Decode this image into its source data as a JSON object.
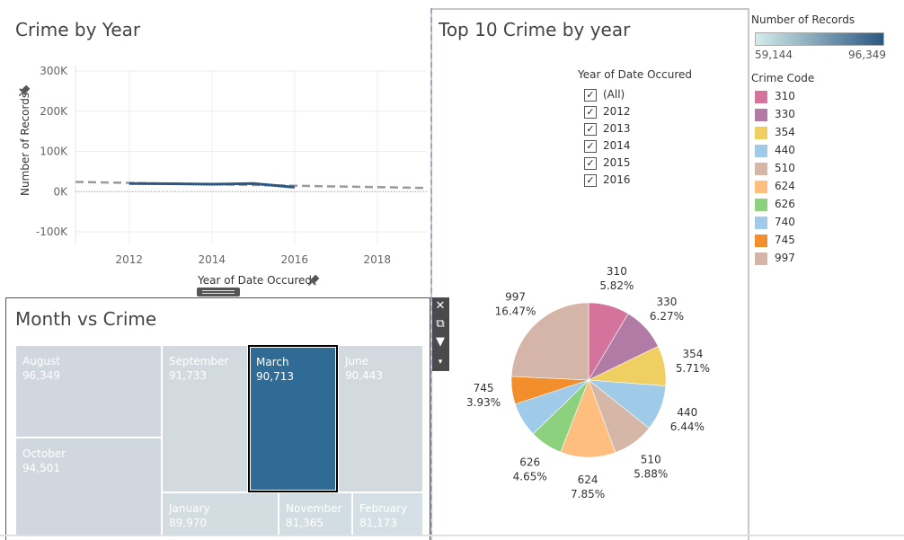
{
  "line_panel": {
    "title": "Crime by Year",
    "ylabel": "Number of Records",
    "xlabel": "Year of Date Occured",
    "y_ticks": [
      "300K",
      "200K",
      "100K",
      "0K",
      "-100K"
    ],
    "x_ticks": [
      "2012",
      "2014",
      "2016",
      "2018"
    ]
  },
  "chart_data": [
    {
      "type": "line",
      "title": "Crime by Year",
      "xlabel": "Year of Date Occured",
      "ylabel": "Number of Records",
      "ylim": [
        -100000,
        300000
      ],
      "xlim": [
        2010.7,
        2019.2
      ],
      "series": [
        {
          "values": [
            {
              "x": 2012,
              "y": 20000
            },
            {
              "x": 2013,
              "y": 19500
            },
            {
              "x": 2014,
              "y": 18500
            },
            {
              "x": 2015,
              "y": 20000
            },
            {
              "x": 2016,
              "y": 11000
            }
          ]
        }
      ],
      "trend_line": {
        "x": [
          2010.7,
          2019.2
        ],
        "y": [
          24000,
          9000
        ]
      },
      "grid": true
    },
    {
      "type": "pie",
      "title": "Top 10 Crime by year",
      "slices": [
        {
          "label": "310",
          "percent": "5.82%",
          "value": 5.82,
          "color": "#D4739B"
        },
        {
          "label": "330",
          "percent": "6.27%",
          "value": 6.27,
          "color": "#B27BA5"
        },
        {
          "label": "354",
          "percent": "5.71%",
          "value": 5.71,
          "color": "#F0CF62"
        },
        {
          "label": "440",
          "percent": "6.44%",
          "value": 6.44,
          "color": "#A0CBE8"
        },
        {
          "label": "510",
          "percent": "5.88%",
          "value": 5.88,
          "color": "#D6B6A6"
        },
        {
          "label": "624",
          "percent": "7.85%",
          "value": 7.85,
          "color": "#FFBE7D"
        },
        {
          "label": "626",
          "percent": "4.65%",
          "value": 4.65,
          "color": "#8CD17D"
        },
        {
          "label": "740",
          "percent": "",
          "value": 4.9,
          "color": "#A0CBE8"
        },
        {
          "label": "745",
          "percent": "3.93%",
          "value": 3.93,
          "color": "#F28E2B"
        },
        {
          "label": "997",
          "percent": "16.47%",
          "value": 16.47,
          "color": "#D4B5A8"
        }
      ]
    },
    {
      "type": "treemap",
      "title": "Month vs Crime",
      "cells": [
        {
          "label": "August",
          "value": "96,349",
          "color": "#d1d7df"
        },
        {
          "label": "October",
          "value": "94,501",
          "color": "#d1d7df"
        },
        {
          "label": "September",
          "value": "91,733",
          "color": "#d2dae0"
        },
        {
          "label": "March",
          "value": "90,713",
          "color": "#2f6b94"
        },
        {
          "label": "June",
          "value": "90,443",
          "color": "#d2dae0"
        },
        {
          "label": "January",
          "value": "89,970",
          "color": "#d2dce1"
        },
        {
          "label": "November",
          "value": "81,365",
          "color": "#d2dde3"
        },
        {
          "label": "February",
          "value": "81,173",
          "color": "#d4e0e5"
        }
      ]
    }
  ],
  "pie_panel": {
    "title": "Top 10 Crime by year"
  },
  "treemap_panel": {
    "title": "Month vs Crime"
  },
  "filter": {
    "title": "Year of Date Occured",
    "options": [
      {
        "label": "(All)",
        "checked": true
      },
      {
        "label": "2012",
        "checked": true
      },
      {
        "label": "2013",
        "checked": true
      },
      {
        "label": "2014",
        "checked": true
      },
      {
        "label": "2015",
        "checked": true
      },
      {
        "label": "2016",
        "checked": true
      }
    ]
  },
  "color_legend": {
    "title": "Number of Records",
    "min": "59,144",
    "max": "96,349",
    "gradient_start": "#d4ecea",
    "gradient_end": "#2a5783"
  },
  "code_legend": {
    "title": "Crime Code",
    "items": [
      {
        "label": "310",
        "color": "#D4739B"
      },
      {
        "label": "330",
        "color": "#B27BA5"
      },
      {
        "label": "354",
        "color": "#F0CF62"
      },
      {
        "label": "440",
        "color": "#A0CBE8"
      },
      {
        "label": "510",
        "color": "#D6B6A6"
      },
      {
        "label": "624",
        "color": "#FFBE7D"
      },
      {
        "label": "626",
        "color": "#8CD17D"
      },
      {
        "label": "740",
        "color": "#A0CBE8"
      },
      {
        "label": "745",
        "color": "#F28E2B"
      },
      {
        "label": "997",
        "color": "#D4B5A8"
      }
    ]
  },
  "toolbar": {
    "close_icon": "close-icon",
    "open_icon": "open-external-icon",
    "filter_icon": "filter-icon",
    "more_icon": "dropdown-icon"
  }
}
